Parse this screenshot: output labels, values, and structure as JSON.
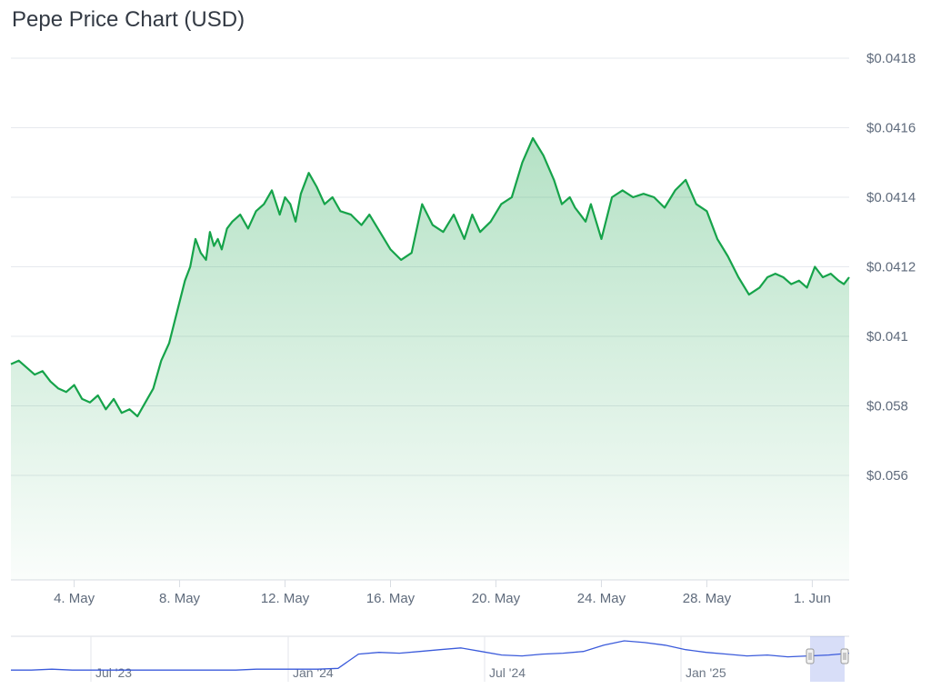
{
  "chart_data": {
    "type": "area",
    "title": "Pepe Price Chart (USD)",
    "xlabel": "",
    "ylabel": "",
    "grid": true,
    "line_color": "#16a34a",
    "fill_color": "#16a34a",
    "x_ticks": [
      "4. May",
      "8. May",
      "12. May",
      "16. May",
      "20. May",
      "24. May",
      "28. May",
      "1. Jun"
    ],
    "y_ticks": [
      "$0.0418",
      "$0.0416",
      "$0.0414",
      "$0.0412",
      "$0.041",
      "$0.058",
      "$0.056"
    ],
    "x_range": [
      1.6,
      33.4
    ],
    "series": [
      {
        "x": [
          1.6,
          1.9,
          2.2,
          2.5,
          2.8,
          3.1,
          3.4,
          3.7,
          4.0,
          4.3,
          4.6,
          4.9,
          5.2,
          5.5,
          5.8,
          6.1,
          6.4,
          6.7,
          7.0,
          7.3,
          7.6,
          7.9,
          8.2,
          8.4,
          8.6,
          8.8,
          9.0,
          9.15,
          9.3,
          9.45,
          9.6,
          9.8,
          10.0,
          10.3,
          10.6,
          10.9,
          11.2,
          11.5,
          11.8,
          12.0,
          12.2,
          12.4,
          12.6,
          12.9,
          13.2,
          13.5,
          13.8,
          14.1,
          14.5,
          14.9,
          15.2,
          15.6,
          16.0,
          16.4,
          16.8,
          17.2,
          17.6,
          18.0,
          18.4,
          18.8,
          19.1,
          19.4,
          19.8,
          20.2,
          20.6,
          21.0,
          21.4,
          21.8,
          22.2,
          22.5,
          22.8,
          23.0,
          23.2,
          23.4,
          23.6,
          24.0,
          24.4,
          24.8,
          25.2,
          25.6,
          26.0,
          26.4,
          26.8,
          27.2,
          27.6,
          28.0,
          28.4,
          28.8,
          29.2,
          29.6,
          30.0,
          30.3,
          30.6,
          30.9,
          31.2,
          31.5,
          31.8,
          32.1,
          32.4,
          32.7,
          33.0,
          33.2,
          33.4
        ],
        "y": [
          0.04092,
          0.04093,
          0.04091,
          0.04089,
          0.0409,
          0.04087,
          0.04085,
          0.04084,
          0.04086,
          0.04082,
          0.04081,
          0.04083,
          0.04079,
          0.04082,
          0.04078,
          0.04079,
          0.04077,
          0.04081,
          0.04085,
          0.04093,
          0.04098,
          0.04107,
          0.04116,
          0.0412,
          0.04128,
          0.04124,
          0.04122,
          0.0413,
          0.04126,
          0.04128,
          0.04125,
          0.04131,
          0.04133,
          0.04135,
          0.04131,
          0.04136,
          0.04138,
          0.04142,
          0.04135,
          0.0414,
          0.04138,
          0.04133,
          0.04141,
          0.04147,
          0.04143,
          0.04138,
          0.0414,
          0.04136,
          0.04135,
          0.04132,
          0.04135,
          0.0413,
          0.04125,
          0.04122,
          0.04124,
          0.04138,
          0.04132,
          0.0413,
          0.04135,
          0.04128,
          0.04135,
          0.0413,
          0.04133,
          0.04138,
          0.0414,
          0.0415,
          0.04157,
          0.04152,
          0.04145,
          0.04138,
          0.0414,
          0.04137,
          0.04135,
          0.04133,
          0.04138,
          0.04128,
          0.0414,
          0.04142,
          0.0414,
          0.04141,
          0.0414,
          0.04137,
          0.04142,
          0.04145,
          0.04138,
          0.04136,
          0.04128,
          0.04123,
          0.04117,
          0.04112,
          0.04114,
          0.04117,
          0.04118,
          0.04117,
          0.04115,
          0.04116,
          0.04114,
          0.0412,
          0.04117,
          0.04118,
          0.04116,
          0.04115,
          0.04117
        ]
      }
    ],
    "navigator": {
      "line_color": "#3b5bdb",
      "labels": [
        "Jul '23",
        "Jan '24",
        "Jul '24",
        "Jan '25"
      ],
      "values": [
        10,
        10,
        11,
        10,
        10,
        10,
        10,
        10,
        10,
        10,
        10,
        10,
        11,
        11,
        11,
        11,
        12,
        28,
        30,
        29,
        31,
        33,
        35,
        31,
        27,
        26,
        28,
        29,
        31,
        38,
        43,
        41,
        38,
        33,
        30,
        28,
        26,
        27,
        25,
        26,
        27,
        29
      ]
    }
  }
}
